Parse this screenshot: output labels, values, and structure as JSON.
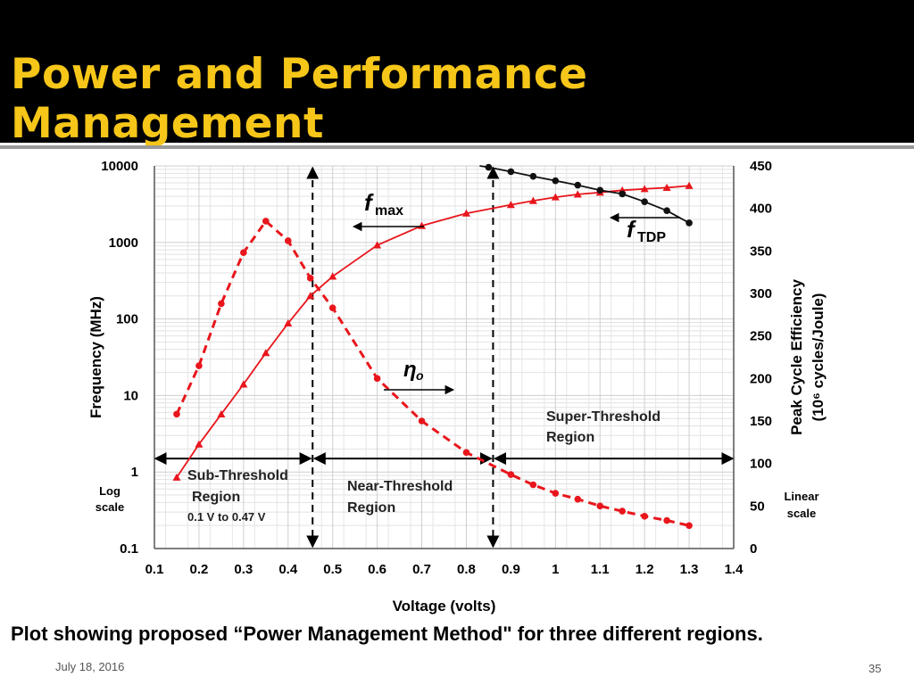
{
  "slide": {
    "title": "Power and Performance  Management",
    "caption": "Plot showing proposed “Power Management Method\" for three different regions.",
    "date": "July 18, 2016",
    "page_number": "35"
  },
  "chart_data": {
    "type": "line",
    "xlabel": "Voltage (volts)",
    "ylabel_left": "Frequency (MHz)",
    "ylabel_right_line1": "Peak Cycle Efficiency",
    "ylabel_right_line2": "(10⁶ cycles/Joule)",
    "xlim": [
      0.1,
      1.4
    ],
    "ylim_left": [
      0.1,
      10000
    ],
    "left_scale": "log",
    "ylim_right": [
      0,
      450
    ],
    "right_scale": "linear",
    "grid": true,
    "x_ticks": [
      "0.1",
      "0.2",
      "0.3",
      "0.4",
      "0.5",
      "0.6",
      "0.7",
      "0.8",
      "0.9",
      "1",
      "1.1",
      "1.2",
      "1.3",
      "1.4"
    ],
    "y_left_ticks": [
      "0.1",
      "1",
      "10",
      "100",
      "1000",
      "10000"
    ],
    "y_right_ticks": [
      "0",
      "50",
      "100",
      "150",
      "200",
      "250",
      "300",
      "350",
      "400",
      "450"
    ],
    "left_scale_label": [
      "Log",
      "scale"
    ],
    "right_scale_label": [
      "Linear",
      "scale"
    ],
    "series": [
      {
        "key": "fmax",
        "axis": "left",
        "color": "#e8161c",
        "marker": "triangle",
        "dash": false,
        "x": [
          0.15,
          0.2,
          0.25,
          0.3,
          0.35,
          0.4,
          0.45,
          0.5,
          0.6,
          0.7,
          0.8,
          0.9,
          0.95,
          1.0,
          1.05,
          1.1,
          1.15,
          1.2,
          1.25,
          1.3
        ],
        "y": [
          0.85,
          2.3,
          5.7,
          14,
          36,
          88,
          200,
          360,
          920,
          1650,
          2400,
          3100,
          3500,
          3900,
          4250,
          4500,
          4800,
          5000,
          5200,
          5500
        ]
      },
      {
        "key": "fTDP",
        "axis": "left",
        "color": "#111111",
        "marker": "circle",
        "dash": false,
        "x": [
          0.83,
          0.85,
          0.9,
          0.95,
          1.0,
          1.05,
          1.1,
          1.15,
          1.2,
          1.25,
          1.3
        ],
        "y": [
          10000,
          9600,
          8400,
          7300,
          6400,
          5600,
          4800,
          4300,
          3400,
          2600,
          1800
        ]
      },
      {
        "key": "eta",
        "axis": "right",
        "color": "#e8161c",
        "marker": "circle",
        "dash": true,
        "x": [
          0.15,
          0.2,
          0.25,
          0.3,
          0.35,
          0.4,
          0.45,
          0.5,
          0.6,
          0.7,
          0.8,
          0.9,
          0.95,
          1.0,
          1.05,
          1.1,
          1.15,
          1.2,
          1.25,
          1.3
        ],
        "y": [
          158,
          215,
          288,
          348,
          385,
          362,
          318,
          283,
          200,
          150,
          113,
          87,
          75,
          65,
          58,
          50,
          44,
          38,
          33,
          27
        ]
      }
    ],
    "annotations": {
      "fmax_label": "f",
      "fmax_sub": "max",
      "ftdp_label": "f",
      "ftdp_sub": "TDP",
      "eta_label": "η",
      "eta_sub": "o",
      "super_threshold": [
        "Super-Threshold",
        "Region"
      ],
      "near_threshold": [
        "Near-Threshold",
        "Region"
      ],
      "sub_threshold": [
        "Sub-Threshold",
        "Region",
        "0.1 V to 0.47 V"
      ]
    },
    "region_boundaries_x": [
      0.455,
      0.86
    ],
    "region_arrow_y": 1.5
  }
}
